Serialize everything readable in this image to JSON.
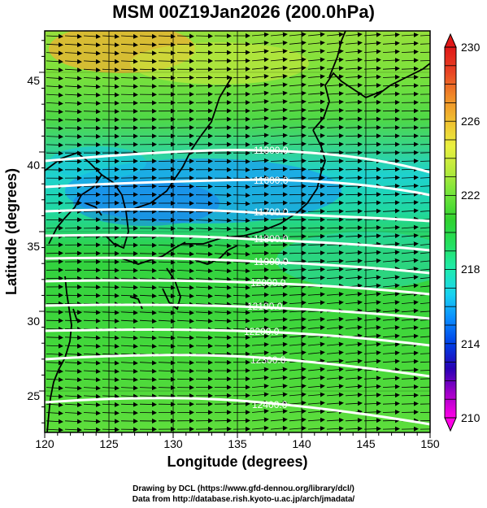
{
  "title": "MSM 00Z19Jan2026 (200.0hPa)",
  "xaxis": {
    "label": "Longitude (degrees)",
    "min": 120,
    "max": 150,
    "ticks": [
      "120",
      "125",
      "130",
      "135",
      "140",
      "145",
      "150"
    ]
  },
  "yaxis": {
    "label": "Latitude  (degrees)",
    "min": 22.4,
    "max": 47.6,
    "ticks": [
      "25",
      "30",
      "35",
      "40",
      "45"
    ]
  },
  "colorbar": {
    "min": 210,
    "max": 230,
    "ticks": [
      "210",
      "214",
      "218",
      "222",
      "226",
      "230"
    ],
    "colors": [
      "#ff00e6",
      "#a000c8",
      "#2800b4",
      "#0040e6",
      "#0a8cff",
      "#18d2f0",
      "#20ecb0",
      "#24e060",
      "#30d230",
      "#6ee43a",
      "#b8ea3c",
      "#eaf040",
      "#f0c030",
      "#f08a28",
      "#e84424",
      "#e01818"
    ]
  },
  "contours": [
    {
      "label": "11300.0"
    },
    {
      "label": "11600.0"
    },
    {
      "label": "11700.0"
    },
    {
      "label": "11800.0"
    },
    {
      "label": "11900.0"
    },
    {
      "label": "12000.0"
    },
    {
      "label": "12100.0"
    },
    {
      "label": "12200.0"
    },
    {
      "label": "12300.0"
    },
    {
      "label": "12400.0"
    }
  ],
  "credits": {
    "line1": "Drawing by DCL (https://www.gfd-dennou.org/library/dcl/)",
    "line2": "Data from http://database.rish.kyoto-u.ac.jp/arch/jmadata/"
  }
}
